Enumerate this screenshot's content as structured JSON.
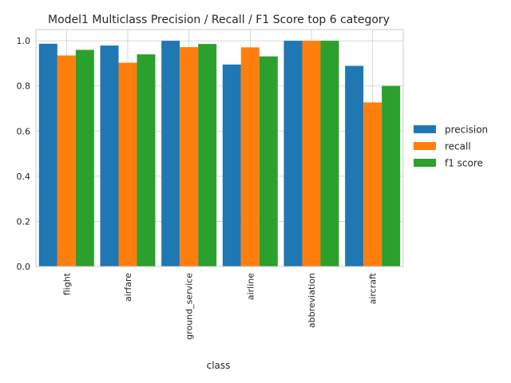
{
  "chart_data": {
    "type": "bar",
    "title": "Model1 Multiclass Precision / Recall / F1 Score top 6 category",
    "xlabel": "class",
    "ylabel": "",
    "ylim": [
      0,
      1.05
    ],
    "yticks": [
      0.0,
      0.2,
      0.4,
      0.6,
      0.8,
      1.0
    ],
    "ytick_labels": [
      "0.0",
      "0.2",
      "0.4",
      "0.6",
      "0.8",
      "1.0"
    ],
    "grid": true,
    "legend_position": "center-right",
    "categories": [
      "flight",
      "airfare",
      "ground_service",
      "airline",
      "abbreviation",
      "aircraft"
    ],
    "series": [
      {
        "name": "precision",
        "color": "#1f77b4",
        "values": [
          0.987,
          0.979,
          1.0,
          0.895,
          1.0,
          0.889
        ]
      },
      {
        "name": "recall",
        "color": "#ff7f0e",
        "values": [
          0.935,
          0.903,
          0.972,
          0.971,
          1.0,
          0.727
        ]
      },
      {
        "name": "f1 score",
        "color": "#2ca02c",
        "values": [
          0.96,
          0.94,
          0.986,
          0.931,
          1.0,
          0.8
        ]
      }
    ]
  }
}
